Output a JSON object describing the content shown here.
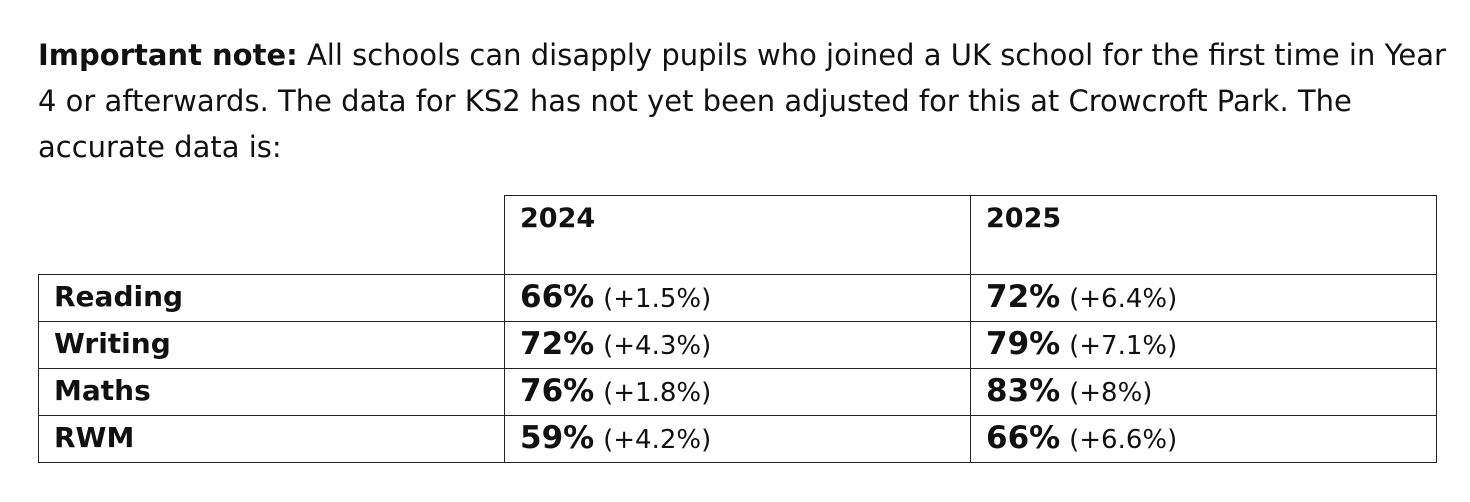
{
  "note": {
    "lead": "Important note:",
    "body": " All schools can disapply pupils who joined a UK school for the first time in Year 4 or afterwards. The data for KS2 has not yet been adjusted for this at Crowcroft Park. The accurate data is:"
  },
  "table": {
    "headers": [
      "2024",
      "2025"
    ],
    "rows": [
      {
        "label": "Reading",
        "y2024": {
          "value": "66%",
          "change": "(+1.5%)"
        },
        "y2025": {
          "value": "72%",
          "change": "(+6.4%)"
        }
      },
      {
        "label": "Writing",
        "y2024": {
          "value": "72%",
          "change": "(+4.3%)"
        },
        "y2025": {
          "value": "79%",
          "change": "(+7.1%)"
        }
      },
      {
        "label": "Maths",
        "y2024": {
          "value": "76%",
          "change": "(+1.8%)"
        },
        "y2025": {
          "value": "83%",
          "change": "(+8%)"
        }
      },
      {
        "label": "RWM",
        "y2024": {
          "value": "59%",
          "change": "(+4.2%)"
        },
        "y2025": {
          "value": "66%",
          "change": "(+6.6%)"
        }
      }
    ]
  }
}
